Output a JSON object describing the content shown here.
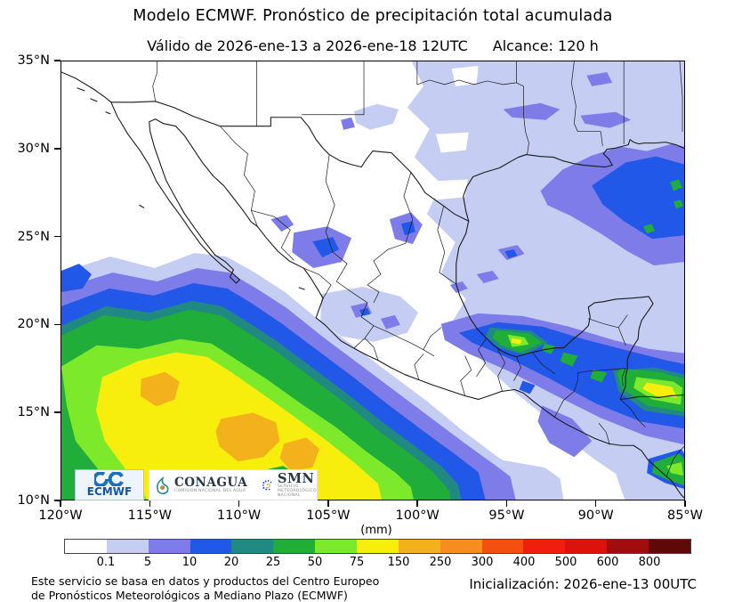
{
  "header": {
    "title": "Modelo ECMWF. Pronóstico de precipitación total acumulada",
    "valid_text": "Válido de 2026-ene-13 a 2026-ene-18 12UTC",
    "range_text": "Alcance: 120 h"
  },
  "map": {
    "x_ticks": [
      "120°W",
      "115°W",
      "110°W",
      "105°W",
      "100°W",
      "95°W",
      "90°W",
      "85°W"
    ],
    "y_ticks": [
      "35°N",
      "30°N",
      "25°N",
      "20°N",
      "15°N",
      "10°N"
    ]
  },
  "colorbar": {
    "unit_label": "(mm)",
    "tick_labels": [
      "0.1",
      "5",
      "10",
      "20",
      "25",
      "50",
      "75",
      "150",
      "250",
      "300",
      "400",
      "500",
      "600",
      "800"
    ],
    "segment_colors": [
      "#ffffff",
      "#c5cdf2",
      "#7e7ce8",
      "#2158e8",
      "#208982",
      "#21ad3a",
      "#7cea2b",
      "#f8ee0e",
      "#f3b11b",
      "#f68d1e",
      "#f5500f",
      "#ee1f0c",
      "#dc120e",
      "#a30d0d",
      "#5f0909"
    ]
  },
  "logos": {
    "ecmwf": {
      "label": "ECMWF"
    },
    "conagua": {
      "label": "CONAGUA",
      "caption": "COMISIÓN NACIONAL DEL AGUA"
    },
    "smn": {
      "label": "SMN",
      "caption": "SERVICIO METEOROLÓGICO NACIONAL"
    }
  },
  "footer": {
    "disclaimer_line1": "Este servicio se basa en datos y productos del Centro Europeo",
    "disclaimer_line2": "de Pronósticos Meteorológicos a Mediano Plazo (ECMWF)",
    "initialization": "Inicialización: 2026-ene-13 00UTC"
  },
  "chart_data": {
    "type": "filled_contour_map",
    "variable": "Precipitación total acumulada (mm)",
    "model": "ECMWF",
    "valid_from": "2026-ene-13",
    "valid_to": "2026-ene-18 12UTC",
    "lead_time_hours": 120,
    "initialization": "2026-ene-13 00UTC",
    "bounds": {
      "lon_min": -120,
      "lon_max": -85,
      "lat_min": 10,
      "lat_max": 35
    },
    "contour_levels_mm": [
      0.1,
      5,
      10,
      20,
      25,
      50,
      75,
      150,
      250,
      300,
      400,
      500,
      600,
      800
    ],
    "features": [
      {
        "region": "Océano Pacífico al suroeste de México (10–18°N, 100–120°W)",
        "max_band_mm": "150-250"
      },
      {
        "region": "Sur de Veracruz–Tabasco–Chiapas y Belice/Guatemala",
        "max_band_mm": "75-150"
      },
      {
        "region": "Golfo de México oriental",
        "max_band_mm": "25-50"
      },
      {
        "region": "Noroeste de México y suroeste de EUA",
        "max_band_mm": "0-0.1"
      }
    ]
  }
}
